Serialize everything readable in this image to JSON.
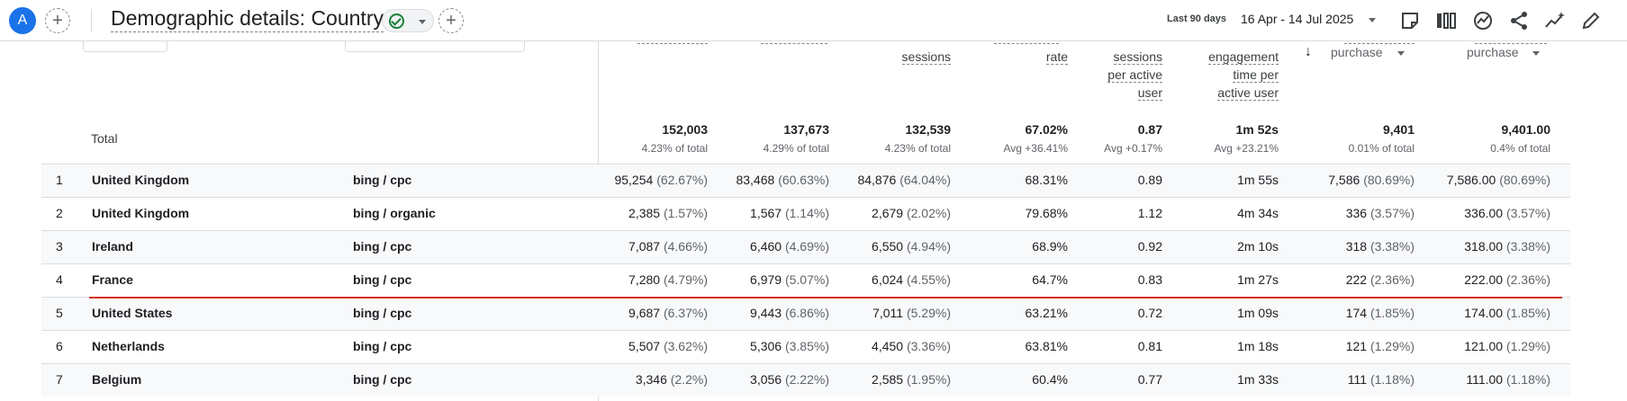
{
  "header": {
    "avatar_letter": "A",
    "title": "Demographic details: Country",
    "date_prefix": "Last 90 days",
    "date_range": "16 Apr - 14 Jul 2025",
    "icons": [
      "add-icon",
      "check-circle-icon",
      "chevron-down-icon",
      "add-comparison-icon",
      "chevron-down-icon",
      "notes-icon",
      "compare-columns-icon",
      "insights-icon",
      "share-icon",
      "explore-icon",
      "edit-icon"
    ]
  },
  "columns": [
    {
      "label": "",
      "sub": []
    },
    {
      "label": "",
      "sub": []
    },
    {
      "label": "sessions",
      "sub": []
    },
    {
      "label": "rate",
      "sub": []
    },
    {
      "label": "",
      "sub": [
        "sessions",
        "per active",
        "user"
      ]
    },
    {
      "label": "",
      "sub": [
        "engagement",
        "time per",
        "active user"
      ]
    },
    {
      "label": "purchase",
      "sub": []
    },
    {
      "label": "purchase",
      "sub": []
    }
  ],
  "totals": {
    "label": "Total",
    "values": [
      "152,003",
      "137,673",
      "132,539",
      "67.02%",
      "0.87",
      "1m 52s",
      "9,401",
      "9,401.00"
    ],
    "subs": [
      "4.23% of total",
      "4.29% of total",
      "4.23% of total",
      "Avg +36.41%",
      "Avg +0.17%",
      "Avg +23.21%",
      "0.01% of total",
      "0.4% of total"
    ]
  },
  "rows": [
    {
      "idx": "1",
      "country": "United Kingdom",
      "source": "bing / cpc",
      "cells": [
        [
          "95,254",
          "(62.67%)"
        ],
        [
          "83,468",
          "(60.63%)"
        ],
        [
          "84,876",
          "(64.04%)"
        ],
        [
          "68.31%",
          ""
        ],
        [
          "0.89",
          ""
        ],
        [
          "1m 55s",
          ""
        ],
        [
          "7,586",
          "(80.69%)"
        ],
        [
          "7,586.00",
          "(80.69%)"
        ]
      ]
    },
    {
      "idx": "2",
      "country": "United Kingdom",
      "source": "bing / organic",
      "cells": [
        [
          "2,385",
          "(1.57%)"
        ],
        [
          "1,567",
          "(1.14%)"
        ],
        [
          "2,679",
          "(2.02%)"
        ],
        [
          "79.68%",
          ""
        ],
        [
          "1.12",
          ""
        ],
        [
          "4m 34s",
          ""
        ],
        [
          "336",
          "(3.57%)"
        ],
        [
          "336.00",
          "(3.57%)"
        ]
      ]
    },
    {
      "idx": "3",
      "country": "Ireland",
      "source": "bing / cpc",
      "cells": [
        [
          "7,087",
          "(4.66%)"
        ],
        [
          "6,460",
          "(4.69%)"
        ],
        [
          "6,550",
          "(4.94%)"
        ],
        [
          "68.9%",
          ""
        ],
        [
          "0.92",
          ""
        ],
        [
          "2m 10s",
          ""
        ],
        [
          "318",
          "(3.38%)"
        ],
        [
          "318.00",
          "(3.38%)"
        ]
      ]
    },
    {
      "idx": "4",
      "country": "France",
      "source": "bing / cpc",
      "cells": [
        [
          "7,280",
          "(4.79%)"
        ],
        [
          "6,979",
          "(5.07%)"
        ],
        [
          "6,024",
          "(4.55%)"
        ],
        [
          "64.7%",
          ""
        ],
        [
          "0.83",
          ""
        ],
        [
          "1m 27s",
          ""
        ],
        [
          "222",
          "(2.36%)"
        ],
        [
          "222.00",
          "(2.36%)"
        ]
      ]
    },
    {
      "idx": "5",
      "country": "United States",
      "source": "bing / cpc",
      "cells": [
        [
          "9,687",
          "(6.37%)"
        ],
        [
          "9,443",
          "(6.86%)"
        ],
        [
          "7,011",
          "(5.29%)"
        ],
        [
          "63.21%",
          ""
        ],
        [
          "0.72",
          ""
        ],
        [
          "1m 09s",
          ""
        ],
        [
          "174",
          "(1.85%)"
        ],
        [
          "174.00",
          "(1.85%)"
        ]
      ]
    },
    {
      "idx": "6",
      "country": "Netherlands",
      "source": "bing / cpc",
      "cells": [
        [
          "5,507",
          "(3.62%)"
        ],
        [
          "5,306",
          "(3.85%)"
        ],
        [
          "4,450",
          "(3.36%)"
        ],
        [
          "63.81%",
          ""
        ],
        [
          "0.81",
          ""
        ],
        [
          "1m 18s",
          ""
        ],
        [
          "121",
          "(1.29%)"
        ],
        [
          "121.00",
          "(1.29%)"
        ]
      ]
    },
    {
      "idx": "7",
      "country": "Belgium",
      "source": "bing / cpc",
      "cells": [
        [
          "3,346",
          "(2.2%)"
        ],
        [
          "3,056",
          "(2.22%)"
        ],
        [
          "2,585",
          "(1.95%)"
        ],
        [
          "60.4%",
          ""
        ],
        [
          "0.77",
          ""
        ],
        [
          "1m 33s",
          ""
        ],
        [
          "111",
          "(1.18%)"
        ],
        [
          "111.00",
          "(1.18%)"
        ]
      ]
    }
  ],
  "accent": {
    "primary": "#1a73e8",
    "annotation_line": "#d93025",
    "ok": "#188038"
  }
}
